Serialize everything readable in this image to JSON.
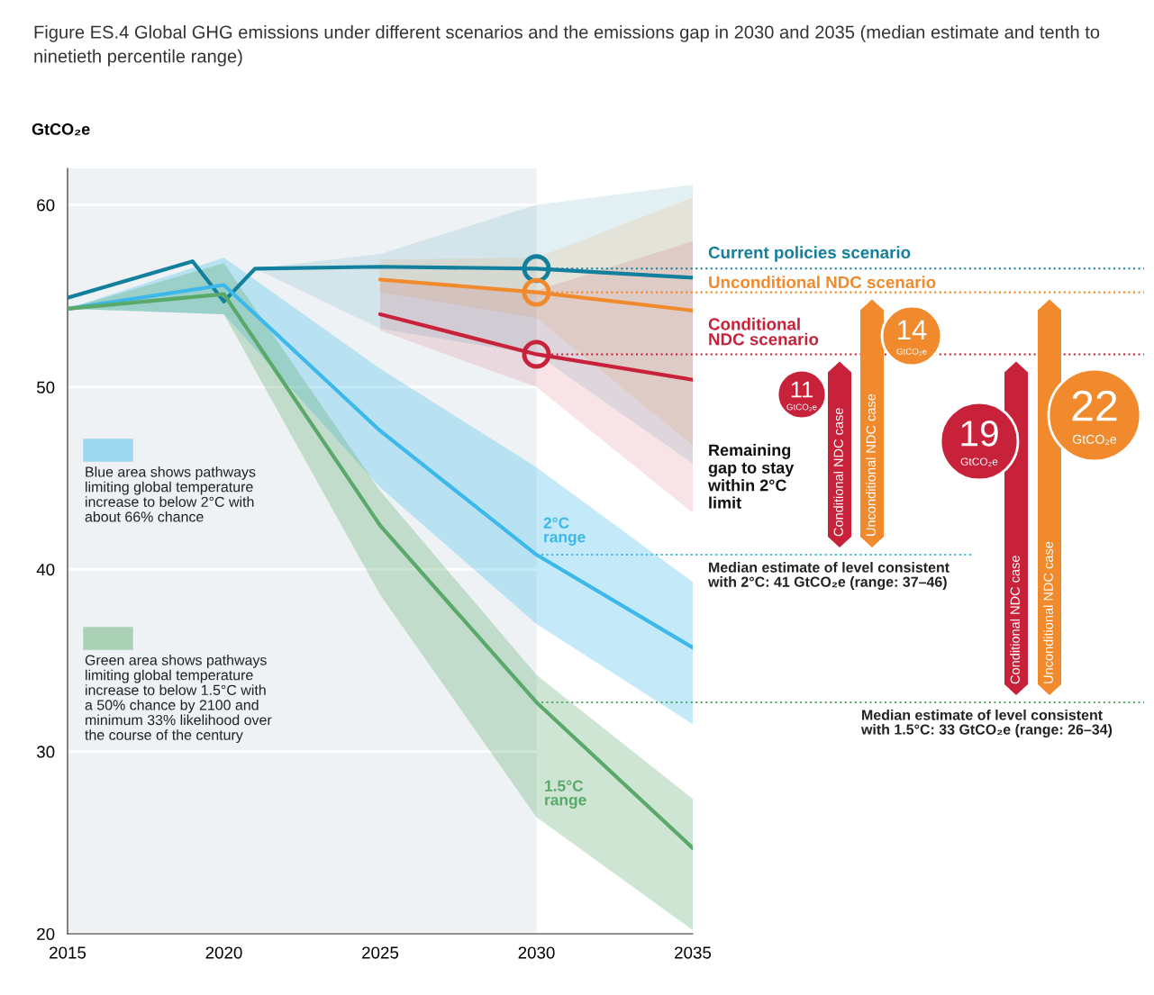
{
  "chart_data": {
    "type": "line",
    "title": "Figure ES.4 Global GHG emissions under different scenarios and the emissions gap in 2030 and 2035 (median estimate and tenth to ninetieth percentile range)",
    "ylabel": "GtCO₂e",
    "xlim": [
      2015,
      2035
    ],
    "xticks": [
      2015,
      2020,
      2025,
      2030,
      2035
    ],
    "ylim": [
      20,
      62
    ],
    "yticks": [
      20,
      30,
      40,
      50,
      60
    ],
    "grid": "y",
    "series": [
      {
        "name": "Current policies scenario",
        "color": "#12809c",
        "x": [
          2015,
          2019,
          2020,
          2021,
          2025,
          2030,
          2035
        ],
        "values": [
          54.9,
          56.9,
          54.7,
          56.5,
          56.6,
          56.5,
          56.0
        ],
        "lower": [
          null,
          null,
          null,
          56.5,
          53.2,
          51.8,
          45.8
        ],
        "upper": [
          null,
          null,
          null,
          56.5,
          57.3,
          60.0,
          61.1
        ]
      },
      {
        "name": "Unconditional NDC scenario",
        "color": "#f08a2c",
        "x": [
          2025,
          2030,
          2035
        ],
        "values": [
          55.9,
          55.2,
          54.2
        ],
        "lower": [
          55.2,
          53.8,
          46.8
        ],
        "upper": [
          57.0,
          57.1,
          60.4
        ]
      },
      {
        "name": "Conditional NDC scenario",
        "color": "#c8213a",
        "x": [
          2025,
          2030,
          2035
        ],
        "values": [
          54.0,
          51.8,
          50.4
        ],
        "lower": [
          53.1,
          50.0,
          43.1
        ],
        "upper": [
          56.0,
          55.3,
          58.0
        ]
      },
      {
        "name": "2°C range",
        "color": "#3db8ea",
        "x": [
          2015,
          2020,
          2025,
          2030,
          2035
        ],
        "values": [
          54.3,
          55.6,
          47.6,
          40.8,
          35.7
        ],
        "lower": [
          54.3,
          54.0,
          44.5,
          37.0,
          31.5
        ],
        "upper": [
          54.3,
          57.1,
          51.0,
          45.6,
          39.3
        ]
      },
      {
        "name": "1.5°C range",
        "color": "#5aa86a",
        "x": [
          2015,
          2020,
          2025,
          2030,
          2035
        ],
        "values": [
          54.3,
          55.1,
          42.4,
          32.7,
          24.7
        ],
        "lower": [
          54.3,
          54.0,
          38.6,
          26.4,
          20.2
        ],
        "upper": [
          54.3,
          56.8,
          44.3,
          34.2,
          27.4
        ]
      },
      {
        "type": "scatter",
        "marker": "circle",
        "x": [
          2030,
          2030,
          2030
        ],
        "values": [
          56.5,
          55.2,
          51.8
        ],
        "colors": [
          "#12809c",
          "#f08a2c",
          "#c8213a"
        ]
      }
    ],
    "bands": [
      {
        "axis": "x",
        "from": 2015,
        "to": 2030,
        "color": "#eef2f5"
      }
    ],
    "ref_lines": [
      {
        "axis": "y",
        "value": 56.5,
        "color": "#12809c",
        "line_style": "dotted"
      },
      {
        "axis": "y",
        "value": 55.2,
        "color": "#f08a2c",
        "line_style": "dotted"
      },
      {
        "axis": "y",
        "value": 51.8,
        "color": "#c8213a",
        "line_style": "dotted"
      },
      {
        "axis": "y",
        "value": 40.8,
        "color": "#3db8ea",
        "line_style": "dotted",
        "label": "Median estimate of level consistent\nwith 2°C: 41 GtCO₂e (range: 37–46)"
      },
      {
        "axis": "y",
        "value": 32.7,
        "color": "#5aa86a",
        "line_style": "dotted",
        "label": "Median estimate of level consistent\nwith 1.5°C: 33 GtCO₂e (range: 26–34)"
      }
    ],
    "annotations": [
      "Blue area shows pathways\nlimiting global temperature\nincrease to below 2°C with\nabout 66% chance",
      "Green area shows pathways\nlimiting global temperature\nincrease to below 1.5°C with\na 50% chance by 2100 and\nminimum 33% likelihood over\nthe course of the century",
      "Remaining\ngap to stay\nwithin 2°C\nlimit",
      "11\nGtCO₂e",
      "14\nGtCO₂e",
      "19\nGtCO₂e",
      "22\nGtCO₂e",
      "Conditional NDC case",
      "Unconditional NDC case",
      "Conditional NDC case",
      "Unconditional NDC case"
    ]
  }
}
